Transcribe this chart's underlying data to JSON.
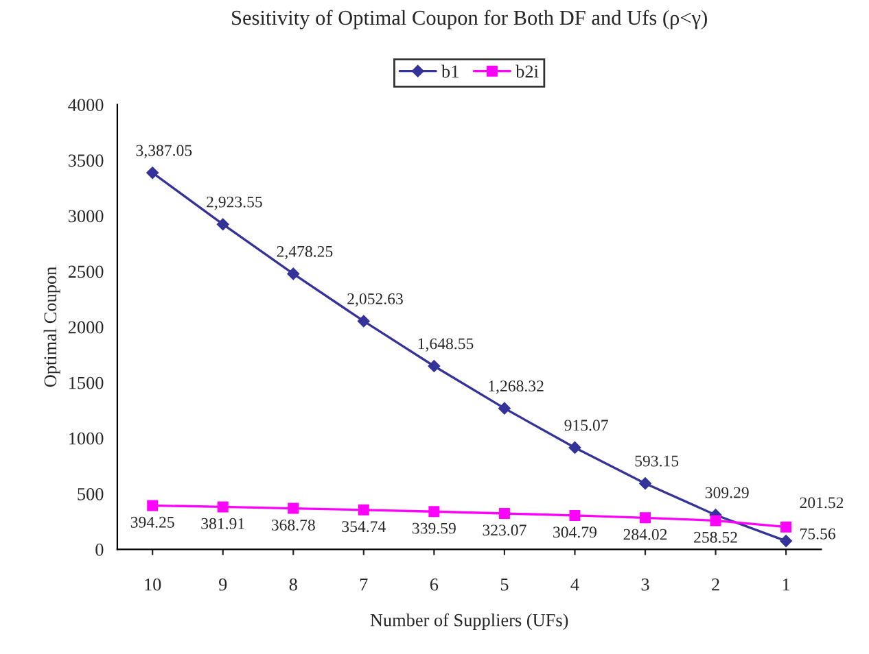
{
  "chart_data": {
    "type": "line",
    "title": "Sesitivity of Optimal Coupon for Both DF and Ufs (ρ<γ)",
    "xlabel": "Number of Suppliers (UFs)",
    "ylabel": "Optimal Coupon",
    "categories": [
      "10",
      "9",
      "8",
      "7",
      "6",
      "5",
      "4",
      "3",
      "2",
      "1"
    ],
    "series": [
      {
        "name": "b1",
        "color": "#333399",
        "marker": "diamond",
        "values": [
          3387.05,
          2923.55,
          2478.25,
          2052.63,
          1648.55,
          1268.32,
          915.07,
          593.15,
          309.29,
          75.56
        ],
        "value_labels": [
          "3,387.05",
          "2,923.55",
          "2,478.25",
          "2,052.63",
          "1,648.55",
          "1,268.32",
          "915.07",
          "593.15",
          "309.29",
          "75.56"
        ]
      },
      {
        "name": "b2i",
        "color": "#ff00ff",
        "marker": "square",
        "values": [
          394.25,
          381.91,
          368.78,
          354.74,
          339.59,
          323.07,
          304.79,
          284.02,
          258.52,
          201.52
        ],
        "value_labels": [
          "394.25",
          "381.91",
          "368.78",
          "354.74",
          "339.59",
          "323.07",
          "304.79",
          "284.02",
          "258.52",
          "201.52"
        ]
      }
    ],
    "ylim": [
      0,
      4000
    ],
    "yticks": [
      0,
      500,
      1000,
      1500,
      2000,
      2500,
      3000,
      3500,
      4000
    ],
    "grid": false,
    "legend": "top"
  }
}
